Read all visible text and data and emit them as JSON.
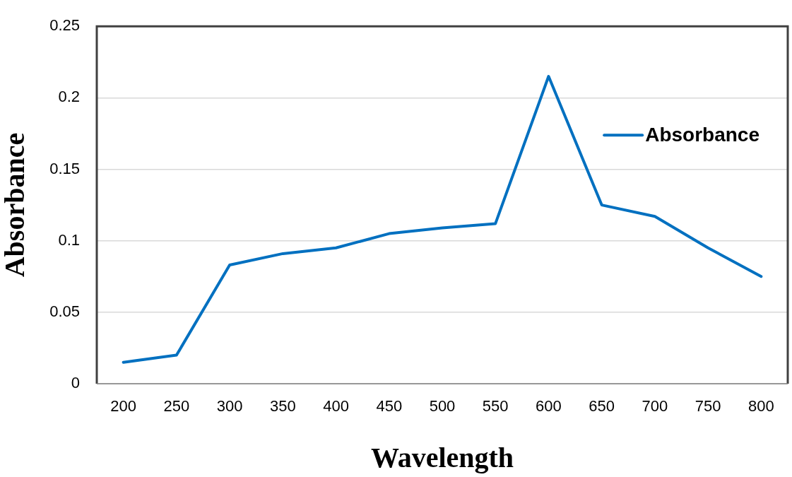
{
  "chart_data": {
    "type": "line",
    "xlabel": "Wavelength",
    "ylabel": "Absorbance",
    "categories": [
      "200",
      "250",
      "300",
      "350",
      "400",
      "450",
      "500",
      "550",
      "600",
      "650",
      "700",
      "750",
      "800"
    ],
    "series": [
      {
        "name": "Absorbance",
        "color": "#0070c0",
        "values": [
          0.015,
          0.02,
          0.083,
          0.091,
          0.095,
          0.105,
          0.109,
          0.112,
          0.215,
          0.125,
          0.117,
          0.095,
          0.075
        ]
      }
    ],
    "ylim": [
      0,
      0.25
    ],
    "yticks": [
      0,
      0.05,
      0.1,
      0.15,
      0.2,
      0.25
    ],
    "grid": "y",
    "legend": "top right",
    "marker": "none",
    "line_style": "solid"
  }
}
